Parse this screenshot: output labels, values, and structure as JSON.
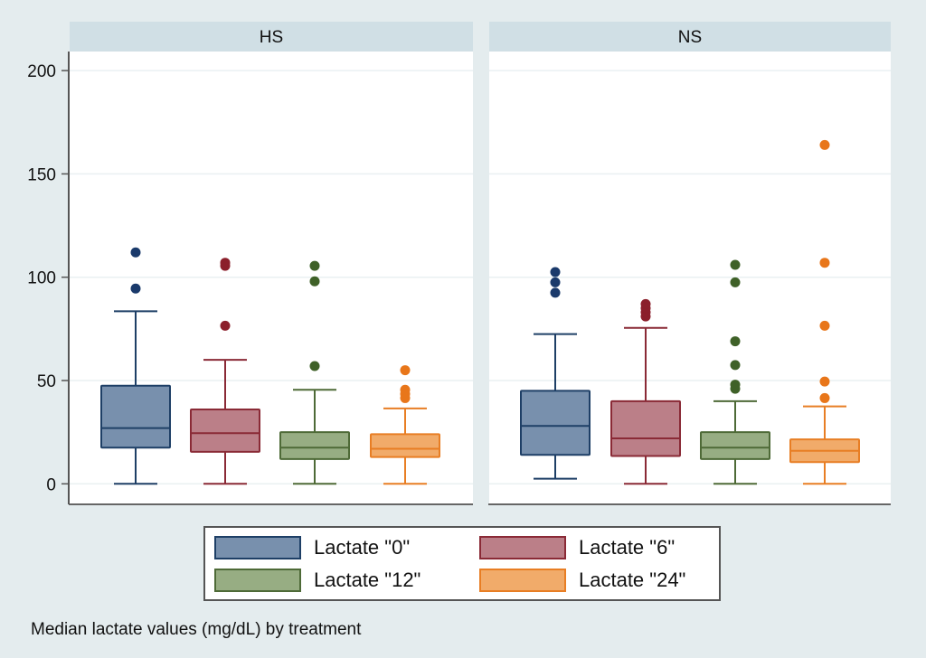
{
  "chart_data": {
    "type": "boxplot",
    "caption": "Median lactate values (mg/dL) by treatment",
    "ylabel": "",
    "xlabel": "",
    "ylim": [
      0,
      210
    ],
    "yticks": [
      0,
      50,
      100,
      150,
      200
    ],
    "grid": true,
    "legend_position": "bottom",
    "panels": [
      {
        "title": "HS",
        "boxes": [
          {
            "series": "Lactate \"0\"",
            "min": 0,
            "q1": 17.5,
            "median": 27,
            "q3": 47.5,
            "max": 83.5,
            "outliers": [
              94.5,
              112
            ]
          },
          {
            "series": "Lactate \"6\"",
            "min": 0,
            "q1": 15.5,
            "median": 24.5,
            "q3": 36,
            "max": 60,
            "outliers": [
              76.5,
              105.5,
              107
            ]
          },
          {
            "series": "Lactate \"12\"",
            "min": 0,
            "q1": 12,
            "median": 17.5,
            "q3": 25,
            "max": 45.5,
            "outliers": [
              57,
              98,
              105.5
            ]
          },
          {
            "series": "Lactate \"24\"",
            "min": 0,
            "q1": 13,
            "median": 17,
            "q3": 24,
            "max": 36.5,
            "outliers": [
              41.5,
              43.5,
              45.5,
              55
            ]
          }
        ]
      },
      {
        "title": "NS",
        "boxes": [
          {
            "series": "Lactate \"0\"",
            "min": 2.5,
            "q1": 14,
            "median": 28,
            "q3": 45,
            "max": 72.5,
            "outliers": [
              92.5,
              97.5,
              102.5
            ]
          },
          {
            "series": "Lactate \"6\"",
            "min": 0,
            "q1": 13.5,
            "median": 22,
            "q3": 40,
            "max": 75.5,
            "outliers": [
              81,
              83,
              85,
              87
            ]
          },
          {
            "series": "Lactate \"12\"",
            "min": 0,
            "q1": 12,
            "median": 17.5,
            "q3": 25,
            "max": 40,
            "outliers": [
              46,
              48,
              57.5,
              69,
              97.5,
              106
            ]
          },
          {
            "series": "Lactate \"24\"",
            "min": 0,
            "q1": 10.5,
            "median": 16,
            "q3": 21.5,
            "max": 37.5,
            "outliers": [
              41.5,
              49.5,
              76.5,
              107,
              164
            ]
          }
        ]
      }
    ],
    "series": [
      {
        "name": "Lactate \"0\"",
        "fill": "#7890ad",
        "stroke": "#1e3f66",
        "dot": "#1a3a6b"
      },
      {
        "name": "Lactate \"6\"",
        "fill": "#bb7f88",
        "stroke": "#8a2a36",
        "dot": "#8b1f2b"
      },
      {
        "name": "Lactate \"12\"",
        "fill": "#97ad83",
        "stroke": "#4e6a37",
        "dot": "#3f6128"
      },
      {
        "name": "Lactate \"24\"",
        "fill": "#f1ab6a",
        "stroke": "#e87e24",
        "dot": "#e8761a"
      }
    ]
  },
  "legend": {
    "items": [
      {
        "label": "Lactate \"0\""
      },
      {
        "label": "Lactate \"6\""
      },
      {
        "label": "Lactate \"12\""
      },
      {
        "label": "Lactate \"24\""
      }
    ]
  }
}
